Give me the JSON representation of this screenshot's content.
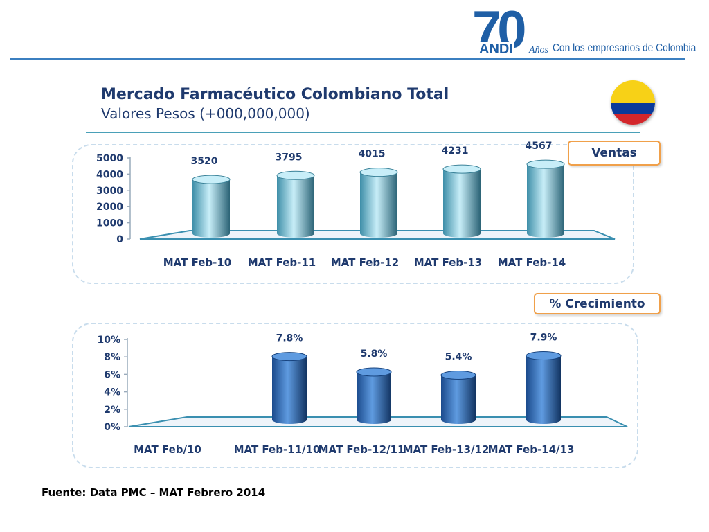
{
  "header": {
    "logo": {
      "number": "70",
      "brand": "ANDI",
      "anos": "Años",
      "tagline": "Con los empresarios de Colombia"
    }
  },
  "title": "Mercado Farmacéutico Colombiano Total",
  "subtitle": "Valores Pesos (+000,000,000)",
  "flag_colors": [
    "#f7d117",
    "#0a3a9a",
    "#d3262b"
  ],
  "source": "Fuente: Data PMC – MAT Febrero 2014",
  "chart_data": [
    {
      "type": "bar",
      "title": "Ventas",
      "categories": [
        "MAT Feb-10",
        "MAT Feb-11",
        "MAT Feb-12",
        "MAT Feb-13",
        "MAT Feb-14"
      ],
      "values": [
        3520,
        3795,
        4015,
        4231,
        4567
      ],
      "labels": [
        "3520",
        "3795",
        "4015",
        "4231",
        "4567"
      ],
      "yticks": [
        "0",
        "1000",
        "2000",
        "3000",
        "4000",
        "5000"
      ],
      "ylim": [
        0,
        5000
      ],
      "colors": {
        "top": "#c8eef8",
        "side": "#3e8ea8"
      }
    },
    {
      "type": "bar",
      "title": "% Crecimiento",
      "categories": [
        "MAT Feb/10",
        "MAT Feb-11/10",
        "MAT Feb-12/11",
        "MAT Feb-13/12",
        "MAT Feb-14/13"
      ],
      "values": [
        null,
        7.8,
        5.8,
        5.4,
        7.9
      ],
      "labels": [
        "",
        "7.8%",
        "5.8%",
        "5.4%",
        "7.9%"
      ],
      "yticks": [
        "0%",
        "2%",
        "4%",
        "6%",
        "8%",
        "10%"
      ],
      "ylim": [
        0,
        10
      ],
      "colors": {
        "top": "#5f9be0",
        "side": "#1a4a8c"
      }
    }
  ]
}
